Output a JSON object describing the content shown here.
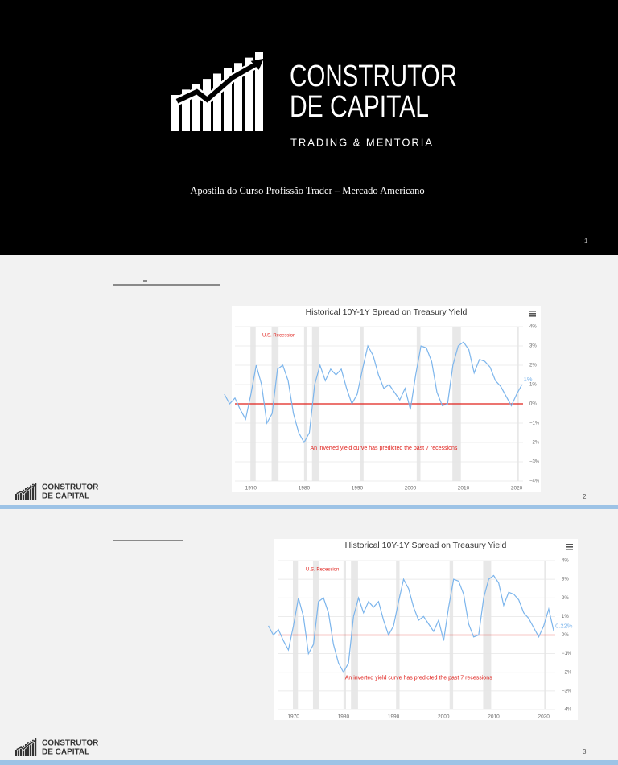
{
  "slides": [
    {
      "page": 1,
      "logo": {
        "line1": "CONSTRUTOR",
        "line2": "DE CAPITAL",
        "tagline": "TRADING & MENTORIA"
      },
      "subtitle": "Apostila do Curso Profissão Trader – Mercado Americano"
    },
    {
      "page": 2,
      "logo": {
        "line1": "CONSTRUTOR",
        "line2": "DE CAPITAL"
      },
      "chart": {
        "type": "line",
        "title": "Historical 10Y-1Y Spread on Treasury Yield",
        "recession_label": "U.S. Recession",
        "annotation": "An inverted yield curve has predicted the past 7 recessions",
        "x": [
          1965,
          1966,
          1967,
          1968,
          1969,
          1970,
          1971,
          1972,
          1973,
          1974,
          1975,
          1976,
          1977,
          1978,
          1979,
          1980,
          1981,
          1982,
          1983,
          1984,
          1985,
          1986,
          1987,
          1988,
          1989,
          1990,
          1991,
          1992,
          1993,
          1994,
          1995,
          1996,
          1997,
          1998,
          1999,
          2000,
          2001,
          2002,
          2003,
          2004,
          2005,
          2006,
          2007,
          2008,
          2009,
          2010,
          2011,
          2012,
          2013,
          2014,
          2015,
          2016,
          2017,
          2018,
          2019,
          2020,
          2021
        ],
        "values": [
          0.5,
          0,
          0.3,
          -0.3,
          -0.8,
          0.5,
          2,
          1,
          -1,
          -0.5,
          1.8,
          2,
          1.2,
          -0.5,
          -1.5,
          -2,
          -1.5,
          1,
          2,
          1.2,
          1.8,
          1.5,
          1.8,
          0.8,
          0,
          0.5,
          1.8,
          3,
          2.5,
          1.5,
          0.8,
          1,
          0.6,
          0.2,
          0.8,
          -0.3,
          1.5,
          3,
          2.9,
          2.2,
          0.6,
          -0.1,
          0,
          2,
          3,
          3.2,
          2.8,
          1.6,
          2.3,
          2.2,
          1.9,
          1.2,
          0.9,
          0.4,
          -0.1,
          0.5,
          1
        ],
        "end_label": "1%",
        "color": "#7cb5ec",
        "recessions": [
          [
            1969.9,
            1970.9
          ],
          [
            1973.9,
            1975.2
          ],
          [
            1980,
            1980.5
          ],
          [
            1981.5,
            1982.9
          ],
          [
            1990.5,
            1991.2
          ],
          [
            2001.2,
            2001.9
          ],
          [
            2007.9,
            2009.5
          ],
          [
            2020.1,
            2020.4
          ]
        ],
        "reference_line": {
          "value": 0,
          "color": "#e0201b"
        },
        "xlim": [
          1967,
          2021.2
        ],
        "xticks": [
          1970,
          1980,
          1990,
          2000,
          2010,
          2020
        ],
        "ylim": [
          -4,
          4
        ],
        "yticks": [
          {
            "value": 4,
            "label": "4%"
          },
          {
            "value": 3,
            "label": "3%"
          },
          {
            "value": 2,
            "label": "2%"
          },
          {
            "value": 1,
            "label": "1%"
          },
          {
            "value": 0,
            "label": "0%"
          },
          {
            "value": -1,
            "label": "−1%"
          },
          {
            "value": -2,
            "label": "−2%"
          },
          {
            "value": -3,
            "label": "−3%"
          },
          {
            "value": -4,
            "label": "−4%"
          }
        ],
        "grid": true
      }
    },
    {
      "page": 3,
      "logo": {
        "line1": "CONSTRUTOR",
        "line2": "DE CAPITAL"
      },
      "chart": {
        "type": "line",
        "title": "Historical 10Y-1Y Spread on Treasury Yield",
        "recession_label": "U.S. Recession",
        "annotation": "An inverted yield curve has predicted the past 7 recessions",
        "x": [
          1965,
          1966,
          1967,
          1968,
          1969,
          1970,
          1971,
          1972,
          1973,
          1974,
          1975,
          1976,
          1977,
          1978,
          1979,
          1980,
          1981,
          1982,
          1983,
          1984,
          1985,
          1986,
          1987,
          1988,
          1989,
          1990,
          1991,
          1992,
          1993,
          1994,
          1995,
          1996,
          1997,
          1998,
          1999,
          2000,
          2001,
          2002,
          2003,
          2004,
          2005,
          2006,
          2007,
          2008,
          2009,
          2010,
          2011,
          2012,
          2013,
          2014,
          2015,
          2016,
          2017,
          2018,
          2019,
          2020,
          2021,
          2022
        ],
        "values": [
          0.5,
          0,
          0.3,
          -0.3,
          -0.8,
          0.5,
          2,
          1,
          -1,
          -0.5,
          1.8,
          2,
          1.2,
          -0.5,
          -1.5,
          -2,
          -1.5,
          1,
          2,
          1.2,
          1.8,
          1.5,
          1.8,
          0.8,
          0,
          0.5,
          1.8,
          3,
          2.5,
          1.5,
          0.8,
          1,
          0.6,
          0.2,
          0.8,
          -0.3,
          1.5,
          3,
          2.9,
          2.2,
          0.6,
          -0.1,
          0,
          2,
          3,
          3.2,
          2.8,
          1.6,
          2.3,
          2.2,
          1.9,
          1.2,
          0.9,
          0.4,
          -0.1,
          0.5,
          1.4,
          0.22
        ],
        "end_label": "0.22%",
        "color": "#7cb5ec",
        "recessions": [
          [
            1969.9,
            1970.9
          ],
          [
            1973.9,
            1975.2
          ],
          [
            1980,
            1980.5
          ],
          [
            1981.5,
            1982.9
          ],
          [
            1990.5,
            1991.2
          ],
          [
            2001.2,
            2001.9
          ],
          [
            2007.9,
            2009.5
          ],
          [
            2020.1,
            2020.4
          ]
        ],
        "reference_line": {
          "value": 0,
          "color": "#e0201b"
        },
        "xlim": [
          1967,
          2022.3
        ],
        "xticks": [
          1970,
          1980,
          1990,
          2000,
          2010,
          2020
        ],
        "ylim": [
          -4,
          4
        ],
        "yticks": [
          {
            "value": 4,
            "label": "4%"
          },
          {
            "value": 3,
            "label": "3%"
          },
          {
            "value": 2,
            "label": "2%"
          },
          {
            "value": 1,
            "label": "1%"
          },
          {
            "value": 0,
            "label": "0%"
          },
          {
            "value": -1,
            "label": "−1%"
          },
          {
            "value": -2,
            "label": "−2%"
          },
          {
            "value": -3,
            "label": "−3%"
          },
          {
            "value": -4,
            "label": "−4%"
          }
        ],
        "grid": true
      }
    }
  ]
}
